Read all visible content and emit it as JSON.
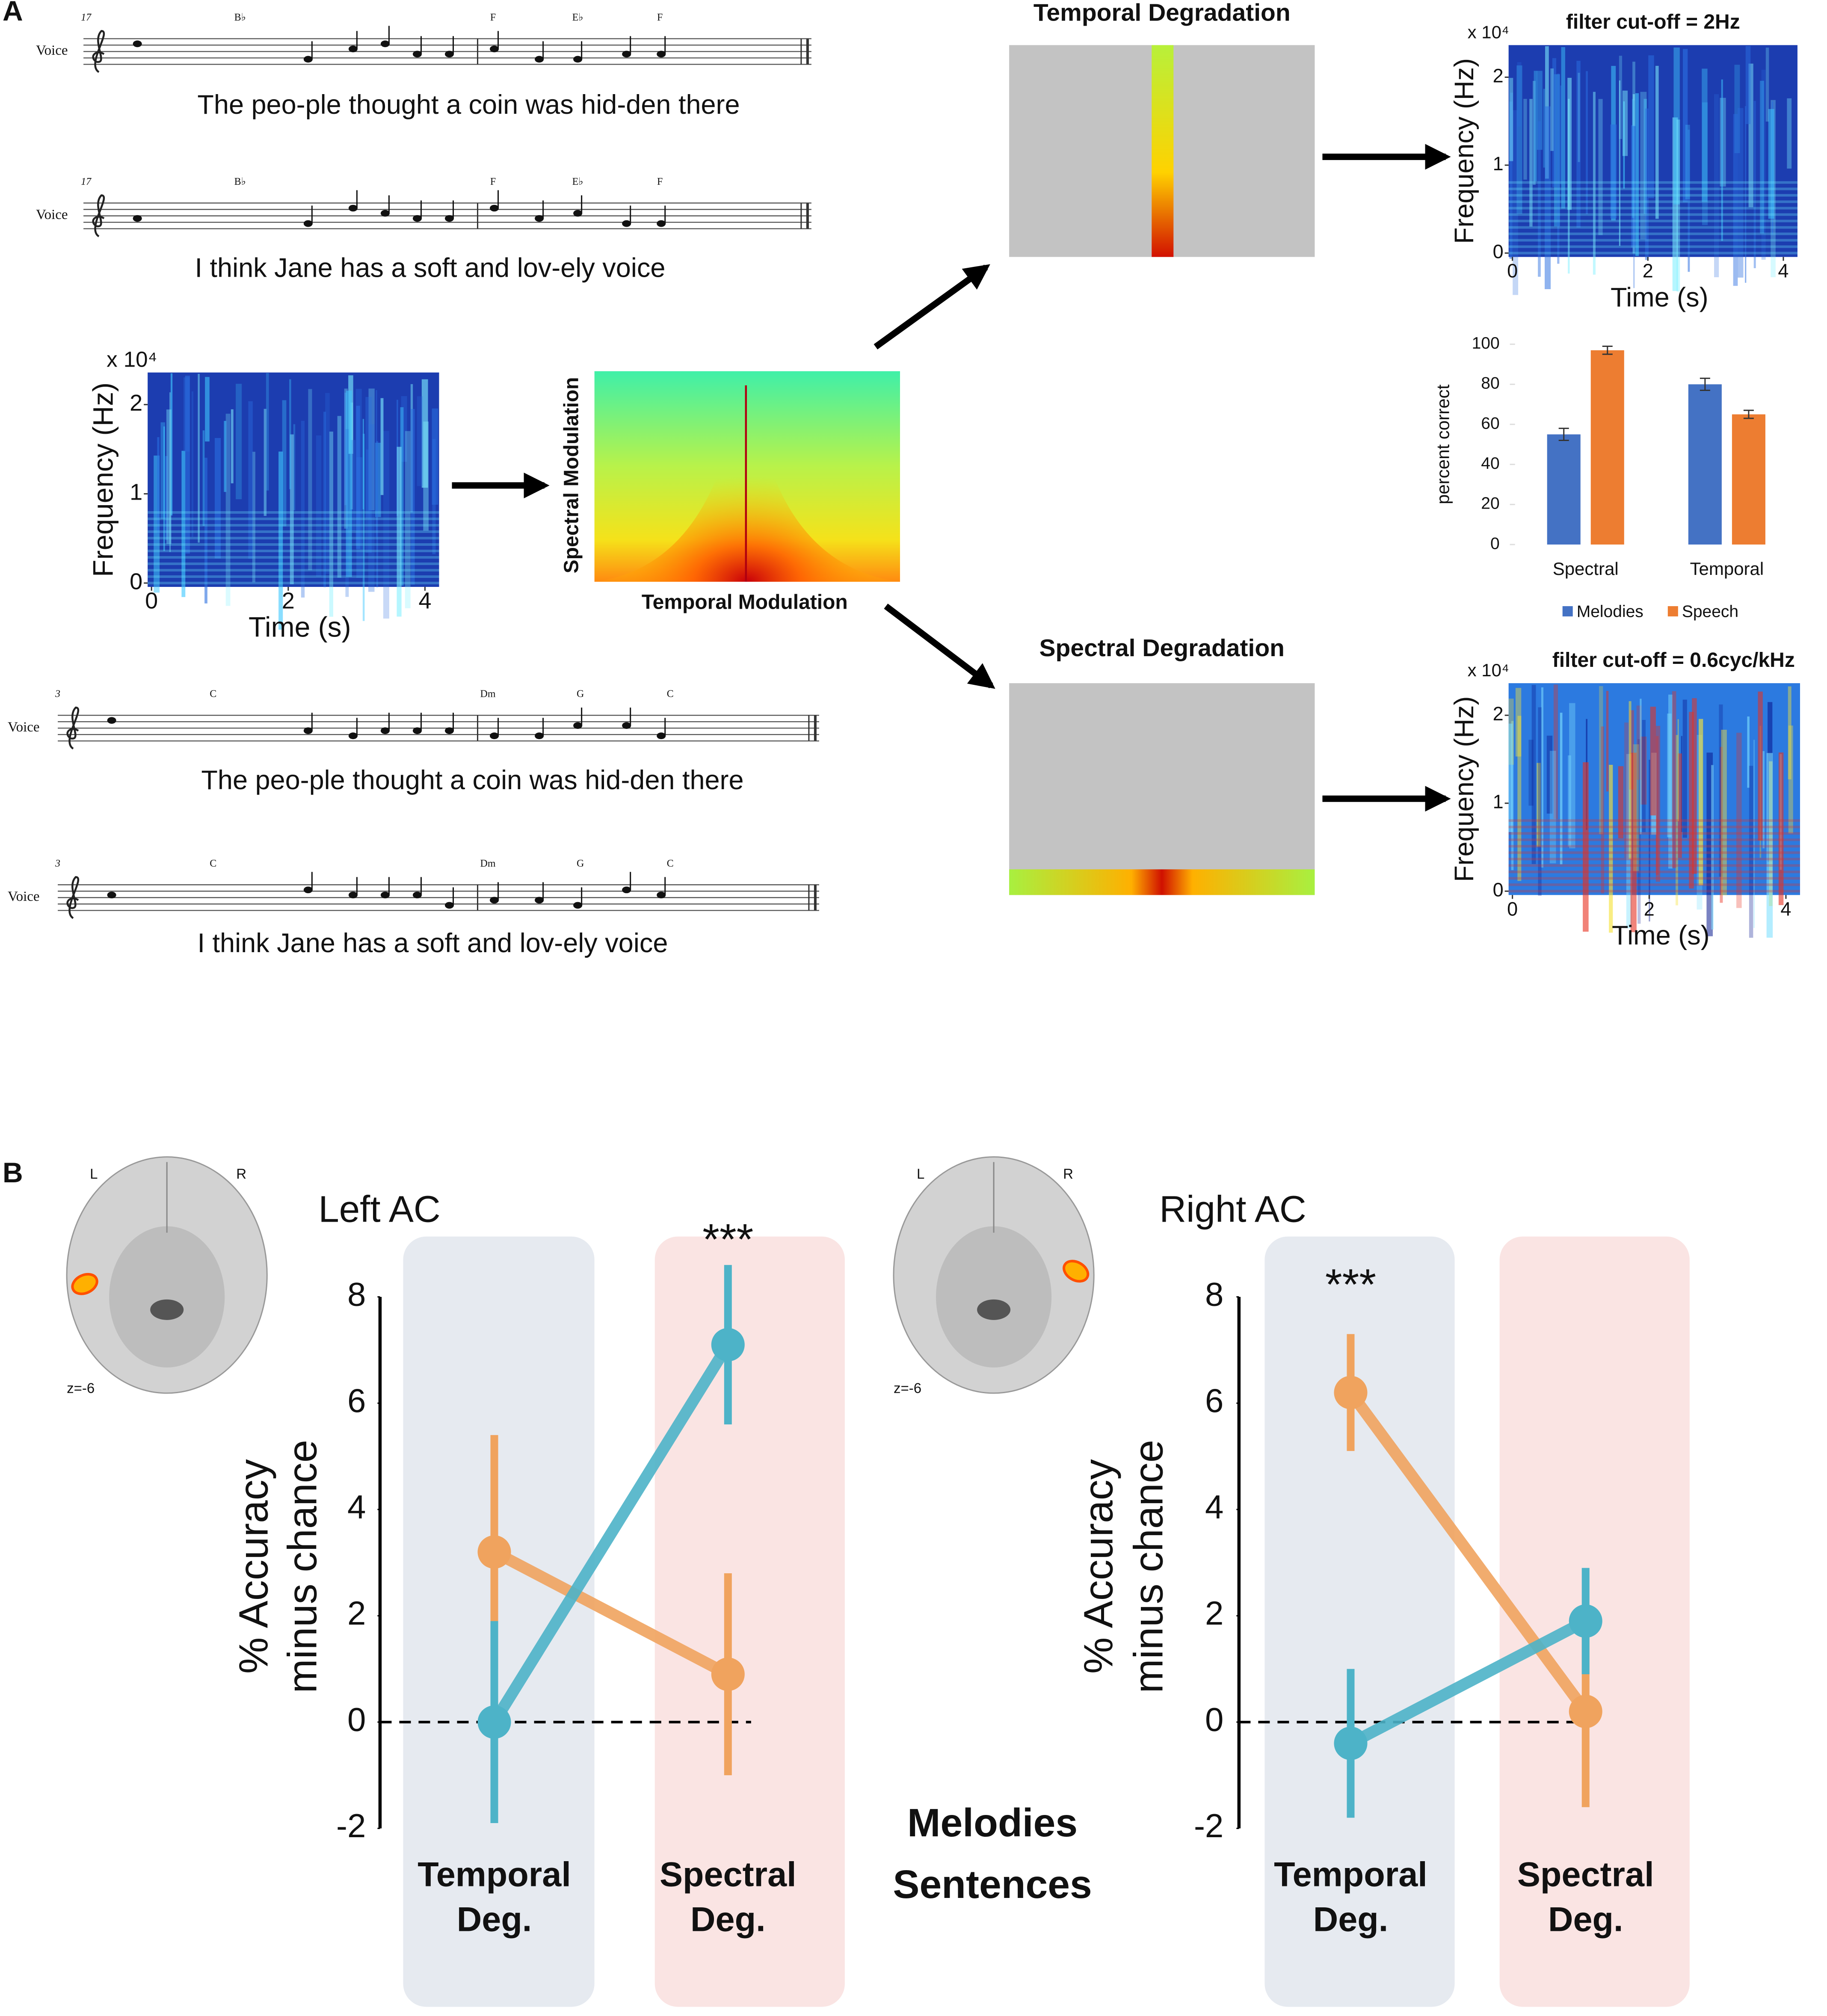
{
  "panels": [
    "A",
    "B"
  ],
  "scores": [
    {
      "measure": "17",
      "voice": "Voice",
      "chords": [
        "B♭",
        "F",
        "E♭",
        "F"
      ],
      "lyrics": "The peo-ple thought a coin was hid-den there"
    },
    {
      "measure": "17",
      "voice": "Voice",
      "chords": [
        "B♭",
        "F",
        "E♭",
        "F"
      ],
      "lyrics": "I think Jane has a soft and lov-ely voice"
    },
    {
      "measure": "3",
      "voice": "Voice",
      "chords": [
        "C",
        "Dm",
        "G",
        "C"
      ],
      "lyrics": "The peo-ple thought a coin was hid-den there"
    },
    {
      "measure": "3",
      "voice": "Voice",
      "chords": [
        "C",
        "Dm",
        "G",
        "C"
      ],
      "lyrics": "I think Jane has a soft and lov-ely voice"
    }
  ],
  "spectrograms": [
    {
      "scale": "x 10⁴",
      "y_label": "Frequency (Hz)",
      "x_label": "Time (s)",
      "yticks": [
        0,
        1,
        2
      ],
      "xticks": [
        0,
        2,
        4
      ]
    },
    {
      "title": "filter cut-off = 2Hz",
      "scale": "x 10⁴",
      "y_label": "Frequency (Hz)",
      "x_label": "Time (s)",
      "yticks": [
        0,
        1,
        2
      ],
      "xticks": [
        0,
        2,
        4
      ]
    },
    {
      "title": "filter cut-off = 0.6cyc/kHz",
      "scale": "x 10⁴",
      "y_label": "Frequency (Hz)",
      "x_label": "Time (s)",
      "yticks": [
        0,
        1,
        2
      ],
      "xticks": [
        0,
        2,
        4
      ]
    }
  ],
  "modulation": {
    "y_label": "Spectral Modulation",
    "x_label": "Temporal Modulation"
  },
  "degradations": [
    {
      "title": "Temporal Degradation"
    },
    {
      "title": "Spectral Degradation"
    }
  ],
  "brains": [
    {
      "left": "L",
      "right": "R",
      "slice": "z=-6"
    },
    {
      "left": "L",
      "right": "R",
      "slice": "z=-6"
    }
  ],
  "chart_data": [
    {
      "type": "bar",
      "y_label": "percent correct",
      "categories": [
        "Spectral",
        "Temporal"
      ],
      "series": [
        {
          "name": "Melodies",
          "color": "#4472c4",
          "values": [
            55,
            80
          ],
          "errors": [
            3,
            3
          ]
        },
        {
          "name": "Speech",
          "color": "#ed7d31",
          "values": [
            97,
            65
          ],
          "errors": [
            2,
            2
          ]
        }
      ],
      "ylim": [
        0,
        100
      ],
      "yticks": [
        0,
        20,
        40,
        60,
        80,
        100
      ],
      "legend": "bottom"
    },
    {
      "type": "line",
      "title": "Left AC",
      "y_label": [
        "% Accuracy",
        "minus chance"
      ],
      "categories": [
        "Temporal Deg.",
        "Spectral Deg."
      ],
      "category_colors": [
        "#1f2a6e",
        "#e8303a"
      ],
      "series": [
        {
          "name": "Melodies",
          "color": "#f0a35e",
          "values": [
            3.2,
            0.9
          ],
          "errors": [
            2.2,
            1.9
          ]
        },
        {
          "name": "Sentences",
          "color": "#4db3c8",
          "values": [
            0,
            7.1
          ],
          "errors": [
            1.9,
            1.5
          ]
        }
      ],
      "ylim": [
        -2,
        8
      ],
      "yticks": [
        -2,
        0,
        2,
        4,
        6,
        8
      ],
      "reference_line": 0,
      "annotations": [
        {
          "text": "***",
          "category": 1
        }
      ],
      "legend": "bottom"
    },
    {
      "type": "line",
      "title": "Right AC",
      "y_label": [
        "% Accuracy",
        "minus chance"
      ],
      "categories": [
        "Temporal Deg.",
        "Spectral Deg."
      ],
      "category_colors": [
        "#1f2a6e",
        "#e8303a"
      ],
      "series": [
        {
          "name": "Melodies",
          "color": "#f0a35e",
          "values": [
            6.2,
            0.2
          ],
          "errors": [
            1.1,
            1.8
          ]
        },
        {
          "name": "Sentences",
          "color": "#4db3c8",
          "values": [
            -0.4,
            1.9
          ],
          "errors": [
            1.4,
            1.0
          ]
        }
      ],
      "ylim": [
        -2,
        8
      ],
      "yticks": [
        -2,
        0,
        2,
        4,
        6,
        8
      ],
      "reference_line": 0,
      "annotations": [
        {
          "text": "***",
          "category": 0
        }
      ]
    }
  ]
}
